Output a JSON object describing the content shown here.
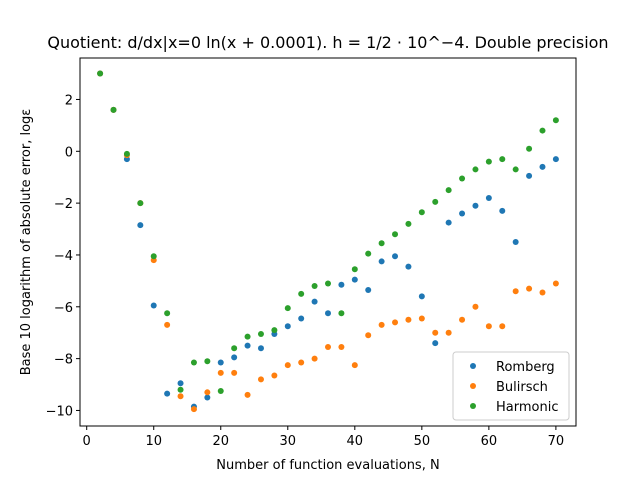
{
  "chart_data": {
    "type": "scatter",
    "title": "Quotient: d/dx|x=0 ln(x + 0.0001). h = 1/2 · 10^−4. Double precision",
    "xlabel": "Number of function evaluations, N",
    "ylabel": "Base 10 logarithm of absolute error, logε",
    "xlim": [
      -1,
      73
    ],
    "ylim": [
      -10.6,
      3.6
    ],
    "xticks": [
      0,
      10,
      20,
      30,
      40,
      50,
      60,
      70
    ],
    "yticks": [
      -10,
      -8,
      -6,
      -4,
      -2,
      0,
      2
    ],
    "ytick_labels": [
      "−10",
      "−8",
      "−6",
      "−4",
      "−2",
      "0",
      "2"
    ],
    "grid": false,
    "legend_position": "lower-right",
    "series": [
      {
        "name": "Romberg",
        "color": "#1f77b4",
        "x": [
          2,
          4,
          6,
          8,
          10,
          12,
          14,
          16,
          18,
          20,
          22,
          24,
          26,
          28,
          30,
          32,
          34,
          36,
          38,
          40,
          42,
          44,
          46,
          48,
          50,
          52,
          54,
          56,
          58,
          60,
          62,
          64,
          66,
          68,
          70
        ],
        "y": [
          3.0,
          1.6,
          -0.3,
          -2.85,
          -5.95,
          -9.35,
          -8.95,
          -9.85,
          -9.5,
          -8.15,
          -7.95,
          -7.5,
          -7.6,
          -7.05,
          -6.75,
          -6.45,
          -5.8,
          -6.25,
          -5.15,
          -4.95,
          -5.35,
          -4.25,
          -4.05,
          -4.45,
          -5.6,
          -7.4,
          -2.75,
          -2.4,
          -2.1,
          -1.8,
          -2.3,
          -3.5,
          -0.95,
          -0.6,
          -0.3
        ]
      },
      {
        "name": "Bulirsch",
        "color": "#ff7f0e",
        "x": [
          2,
          4,
          6,
          8,
          10,
          12,
          14,
          16,
          18,
          20,
          22,
          24,
          26,
          28,
          30,
          32,
          34,
          36,
          38,
          40,
          42,
          44,
          46,
          48,
          50,
          52,
          54,
          56,
          58,
          60,
          62,
          64,
          66,
          68,
          70
        ],
        "y": [
          3.0,
          1.6,
          -0.15,
          -2.0,
          -4.2,
          -6.7,
          -9.45,
          -9.95,
          -9.3,
          -8.55,
          -8.55,
          -9.4,
          -8.8,
          -8.65,
          -8.25,
          -8.15,
          -8.0,
          -7.55,
          -7.55,
          -8.25,
          -7.1,
          -6.7,
          -6.6,
          -6.5,
          -6.45,
          -7.0,
          -7.0,
          -6.5,
          -6.0,
          -6.75,
          -6.75,
          -5.4,
          -5.3,
          -5.45,
          -5.1
        ]
      },
      {
        "name": "Harmonic",
        "color": "#2ca02c",
        "x": [
          2,
          4,
          6,
          8,
          10,
          12,
          14,
          16,
          18,
          20,
          22,
          24,
          26,
          28,
          30,
          32,
          34,
          36,
          38,
          40,
          42,
          44,
          46,
          48,
          50,
          52,
          54,
          56,
          58,
          60,
          62,
          64,
          66,
          68,
          70
        ],
        "y": [
          3.0,
          1.6,
          -0.1,
          -2.0,
          -4.05,
          -6.25,
          -9.2,
          -8.15,
          -8.1,
          -9.25,
          -7.6,
          -7.15,
          -7.05,
          -6.9,
          -6.05,
          -5.5,
          -5.2,
          -5.1,
          -6.25,
          -4.55,
          -3.95,
          -3.55,
          -3.2,
          -2.8,
          -2.35,
          -1.95,
          -1.5,
          -1.05,
          -0.7,
          -0.4,
          -0.3,
          -0.7,
          0.1,
          0.8,
          1.2
        ]
      }
    ]
  }
}
